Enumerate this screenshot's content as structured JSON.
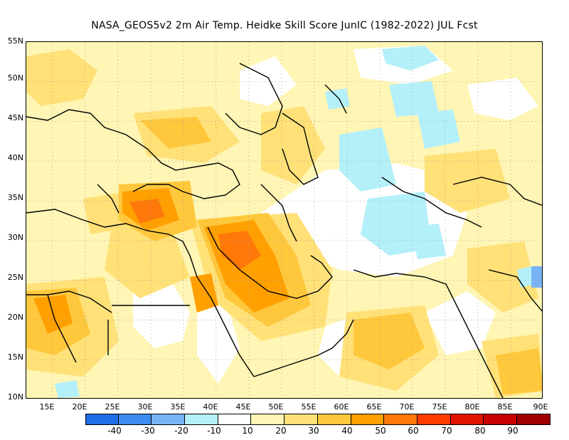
{
  "title": "NASA_GEOS5v2  2m Air Temp. Heidke Skill Score JunIC (1982-2022) JUL Fcst",
  "map": {
    "lon_range": [
      11,
      90
    ],
    "lat_range": [
      10,
      55
    ],
    "lat_ticks": [
      "10N",
      "15N",
      "20N",
      "25N",
      "30N",
      "35N",
      "40N",
      "45N",
      "50N",
      "55N"
    ],
    "lon_ticks": [
      "15E",
      "20E",
      "25E",
      "30E",
      "35E",
      "40E",
      "45E",
      "50E",
      "55E",
      "60E",
      "65E",
      "70E",
      "75E",
      "80E",
      "85E",
      "90E"
    ],
    "gridlines": "dotted"
  },
  "colorbar": {
    "labels": [
      "-40",
      "-30",
      "-20",
      "-10",
      "10",
      "20",
      "30",
      "40",
      "50",
      "60",
      "70",
      "80",
      "90"
    ],
    "colors": [
      "#1e6fe6",
      "#3c8cf0",
      "#78b4f5",
      "#b4f0fa",
      "#ffffff",
      "#fff5b4",
      "#ffe178",
      "#ffc83c",
      "#ffa000",
      "#ff780a",
      "#ff3c00",
      "#e11400",
      "#c80000",
      "#a00000"
    ]
  }
}
